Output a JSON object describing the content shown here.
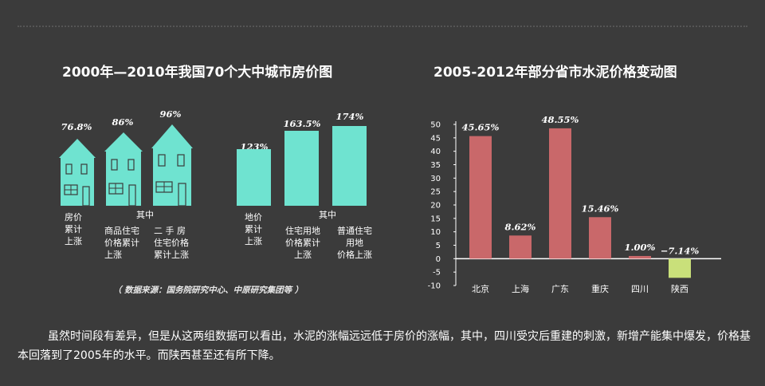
{
  "left_chart": {
    "title": "2000年—2010年我国70个大中城市房价图",
    "houses": [
      {
        "value_label": "76.8%",
        "value": 76.8,
        "label": "房价\n累计\n上涨"
      },
      {
        "value_label": "86%",
        "value": 86,
        "label": "商品住宅\n价格累计\n上涨"
      },
      {
        "value_label": "96%",
        "value": 96,
        "label": "二 手 房\n住宅价格\n累计上涨"
      }
    ],
    "house_group_label": "其中",
    "bars": [
      {
        "value_label": "123%",
        "value": 123,
        "label": "地价\n累计\n上涨"
      },
      {
        "value_label": "163.5%",
        "value": 163.5,
        "label": "住宅用地\n价格累计\n上涨"
      },
      {
        "value_label": "174%",
        "value": 174,
        "label": "普通住宅\n用地\n价格上涨"
      }
    ],
    "bar_group_label": "其中",
    "source": "（ 数据来源：国务院研究中心、中原研究集团等 ）",
    "color": "#6fe3d0"
  },
  "chart_data": {
    "type": "bar",
    "title": "2005-2012年部分省市水泥价格变动图",
    "categories": [
      "北京",
      "上海",
      "广东",
      "重庆",
      "四川",
      "陕西"
    ],
    "values": [
      45.65,
      8.62,
      48.55,
      15.46,
      1.0,
      -7.14
    ],
    "data_labels": [
      "45.65%",
      "8.62%",
      "48.55%",
      "15.46%",
      "1.00%",
      "−7.14%"
    ],
    "ylim": [
      -10,
      50
    ],
    "yticks": [
      -10,
      -5,
      0,
      5,
      10,
      15,
      20,
      25,
      30,
      35,
      40,
      45,
      50
    ],
    "bar_color": "#c9686a",
    "negative_color": "#c9e07a",
    "grid": false
  },
  "body_text": "虽然时间段有差异，但是从这两组数据可以看出，水泥的涨幅远远低于房价的涨幅，其中，四川受灾后重建的刺激，新增产能集中爆发，价格基本回落到了2005年的水平。而陕西甚至还有所下降。"
}
